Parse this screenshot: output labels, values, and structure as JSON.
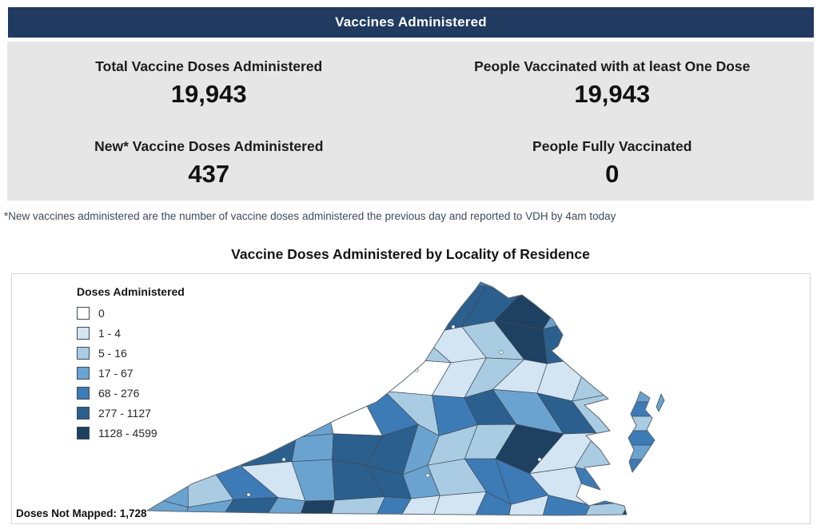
{
  "header": {
    "title": "Vaccines Administered",
    "bg_color": "#203a60"
  },
  "stats": [
    {
      "label": "Total Vaccine Doses Administered",
      "value": "19,943"
    },
    {
      "label": "People Vaccinated with at least One Dose",
      "value": "19,943"
    },
    {
      "label": "New* Vaccine Doses Administered",
      "value": "437"
    },
    {
      "label": "People Fully Vaccinated",
      "value": "0"
    }
  ],
  "footnote": "*New vaccines administered are the number of vaccine doses administered the previous day and reported to VDH by 4am today",
  "map_section": {
    "title": "Vaccine Doses Administered by Locality of Residence",
    "legend_title": "Doses Administered",
    "doses_not_mapped_label": "Doses Not Mapped: 1,728"
  },
  "chart_data": {
    "type": "choropleth",
    "title": "Vaccine Doses Administered by Locality of Residence",
    "region": "Virginia localities (counties and independent cities)",
    "legend_title": "Doses Administered",
    "classes": [
      {
        "label": "0",
        "color": "#ffffff"
      },
      {
        "label": "1 - 4",
        "color": "#d3e4f3"
      },
      {
        "label": "5 - 16",
        "color": "#a9cce3"
      },
      {
        "label": "17 - 67",
        "color": "#6ba3d0"
      },
      {
        "label": "68 - 276",
        "color": "#3d7bb7"
      },
      {
        "label": "277 - 1127",
        "color": "#2b5f8d"
      },
      {
        "label": "1128 - 4599",
        "color": "#1e4061"
      }
    ],
    "doses_not_mapped": 1728,
    "summary_stats": {
      "total_vaccine_doses_administered": 19943,
      "people_vaccinated_with_at_least_one_dose": 19943,
      "new_vaccine_doses_administered": 437,
      "people_fully_vaccinated": 0
    }
  }
}
